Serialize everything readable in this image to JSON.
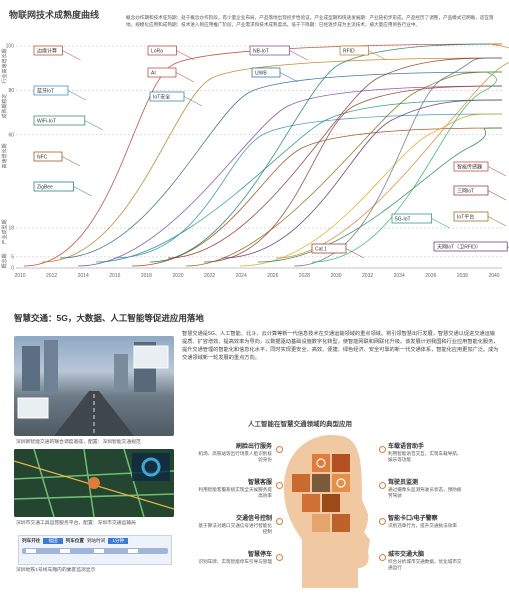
{
  "chart": {
    "title": "物联网技术成熟度曲线",
    "note": "概念炒作期和技术狂热期：处于概念炒作阶段，有少量企业布局，产品落地出现初步性验证。产业成型期和快速发展期：产业链初步形成，产品经历了调整，产品模式已明确，适宜落地。规模化应用和成熟期：技术进入到应用推广阶段，产业需求和技术成熟度高。低于下降期：已经逐步成为主流技术，被大量应用到各行业中。",
    "yticks": [
      {
        "v": 100,
        "t": "100"
      },
      {
        "v": 80,
        "t": "80"
      },
      {
        "v": 60,
        "t": "60"
      },
      {
        "v": 18,
        "t": "18"
      },
      {
        "v": 5,
        "t": "5"
      },
      {
        "v": 0,
        "t": "0"
      }
    ],
    "xticks": [
      "2010",
      "2012",
      "2014",
      "2016",
      "2018",
      "2020",
      "2022",
      "2024",
      "2026",
      "2028",
      "2030",
      "2032",
      "2034",
      "2036",
      "2038",
      "2040"
    ],
    "phases": [
      "行业高速增长期",
      "成熟期稳定",
      "高速增长期",
      "产业成型期",
      "概念期"
    ],
    "labels": [
      {
        "t": "边缘计算",
        "c": "#c0392b"
      },
      {
        "t": "LoRa",
        "c": "#b03a2e"
      },
      {
        "t": "NB-IoT",
        "c": "#7d3c98"
      },
      {
        "t": "RFID",
        "c": "#b9770e"
      },
      {
        "t": "AI",
        "c": "#c0392b"
      },
      {
        "t": "UWB",
        "c": "#1f618d"
      },
      {
        "t": "蓝牙IoT",
        "c": "#2e86c1"
      },
      {
        "t": "IoT安全",
        "c": "#2874a6"
      },
      {
        "t": "WiFi-IoT",
        "c": "#1e8449"
      },
      {
        "t": "NFC",
        "c": "#a04000"
      },
      {
        "t": "ZigBee",
        "c": "#117a65"
      },
      {
        "t": "智能传感器",
        "c": "#c0392b"
      },
      {
        "t": "三网IoT",
        "c": "#922b21"
      },
      {
        "t": "IoT平台",
        "c": "#7d6608"
      },
      {
        "t": "5G-IoT",
        "c": "#148f77"
      },
      {
        "t": "Cat.1",
        "c": "#943126"
      },
      {
        "t": "天网IoT（卫RFID）",
        "c": "#5b2c6f"
      }
    ],
    "series_colors": [
      "#c0392b",
      "#b9770e",
      "#1f618d",
      "#7d3c98",
      "#148f77",
      "#2e86c1",
      "#a04000",
      "#117a65",
      "#922b21",
      "#7d6608",
      "#943126",
      "#5b2c6f",
      "#d4ac0d",
      "#1e8449",
      "#e67e22",
      "#5d6d7e",
      "#28b463"
    ]
  },
  "section2": {
    "title": "智慧交通：5G，大数据、人工智能等促进应用落地",
    "intro": "智慧交通是5G、人工智能、北斗、云计算等新一代信息技术在交通运输领域的重点领域。将引领智慧出行发展，智慧交通以促进交通运输提质、扩容增效、提高效率为导向，以数据驱动基础设施数字化转型，使智能网联和网联化升级。该发展计划我国和行业应用智能化服务，提升交通管理的智能化和信息化水平，同时实现更安全、高效、便捷、绿色经济、安全可靠的新一代交通体系，智能化应用更加广泛。成为交通领域新一轮发展的重点方向。",
    "photo1_caption": "深圳新智能交通的联合调度基座，配置：深圳智能交通规范",
    "photo2_caption": "深圳市交通工具运营服务平台，配置：深圳市交通运输局",
    "banner": {
      "tabs": [
        "列车开往",
        "福田",
        "列车位置",
        "到站时间",
        "1分钟"
      ],
      "caption": "深圳地铁1号线车厢内的乘客监测显示"
    },
    "ai_title": "人工智能在智慧交通领域的典型应用",
    "apps": [
      {
        "h": "刷脸出行服务",
        "d": "机场、高铁站等出行场景人脸识别核验身份"
      },
      {
        "h": "智慧客服",
        "d": "利用智能客服系统实现全天候服务提高效率"
      },
      {
        "h": "交通信号控制",
        "d": "基于算法对路口交通信号进行智能化控制"
      },
      {
        "h": "智慧停车",
        "d": "识别车牌、实现智能停车引导与管理"
      },
      {
        "h": "车载语音助手",
        "d": "利用智能语音交互，实现车载导航、娱乐等功能"
      },
      {
        "h": "驾驶员监测",
        "d": "通过摄像头监测驾驶员状态，预防疲劳驾驶"
      },
      {
        "h": "智能卡口/电子警察",
        "d": "识别违章行为，提升交通执法效率"
      },
      {
        "h": "城市交通大脑",
        "d": "综合分析城市交通数据，优化城市交通运行"
      }
    ]
  }
}
